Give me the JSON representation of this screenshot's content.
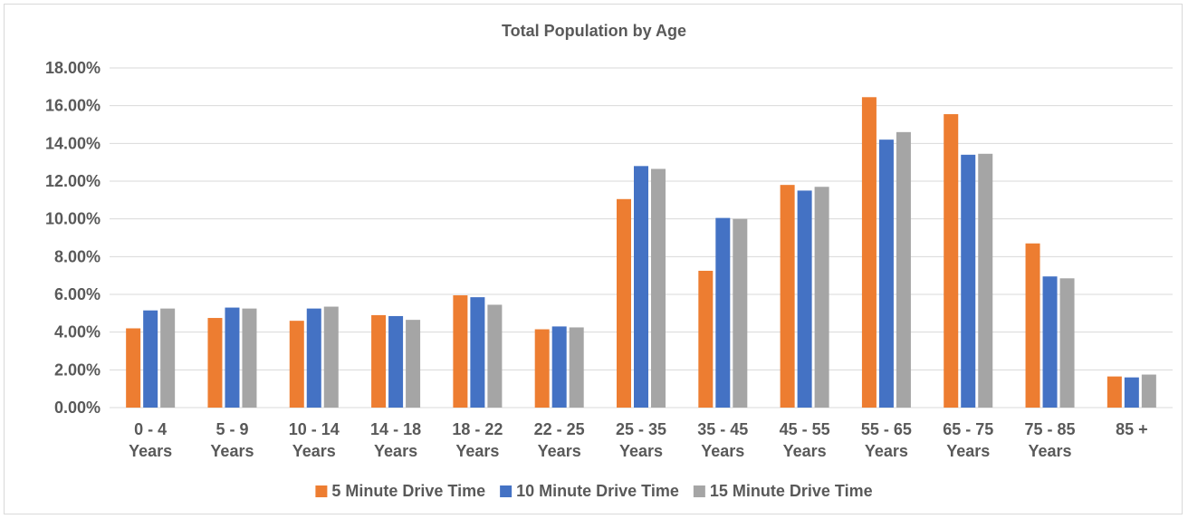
{
  "chart_data": {
    "type": "bar",
    "title": "Total Population by Age",
    "xlabel": "",
    "ylabel": "",
    "ylim": [
      0,
      18
    ],
    "yticks": [
      0,
      2,
      4,
      6,
      8,
      10,
      12,
      14,
      16,
      18
    ],
    "ytick_labels": [
      "0.00%",
      "2.00%",
      "4.00%",
      "6.00%",
      "8.00%",
      "10.00%",
      "12.00%",
      "14.00%",
      "16.00%",
      "18.00%"
    ],
    "grid": true,
    "legend_position": "bottom",
    "categories": [
      [
        "0 - 4",
        "Years"
      ],
      [
        "5 - 9",
        "Years"
      ],
      [
        "10 - 14",
        "Years"
      ],
      [
        "14 - 18",
        "Years"
      ],
      [
        "18 - 22",
        "Years"
      ],
      [
        "22 - 25",
        "Years"
      ],
      [
        "25 - 35",
        "Years"
      ],
      [
        "35 - 45",
        "Years"
      ],
      [
        "45 - 55",
        "Years"
      ],
      [
        "55 - 65",
        "Years"
      ],
      [
        "65 - 75",
        "Years"
      ],
      [
        "75 - 85",
        "Years"
      ],
      [
        "85 +"
      ]
    ],
    "series": [
      {
        "name": "5 Minute Drive Time",
        "color": "#ed7d31",
        "values": [
          4.2,
          4.75,
          4.6,
          4.9,
          5.95,
          4.15,
          11.05,
          7.25,
          11.8,
          16.45,
          15.55,
          8.7,
          1.65
        ]
      },
      {
        "name": "10 Minute Drive Time",
        "color": "#4472c4",
        "values": [
          5.15,
          5.3,
          5.25,
          4.85,
          5.85,
          4.3,
          12.8,
          10.05,
          11.5,
          14.2,
          13.4,
          6.95,
          1.6
        ]
      },
      {
        "name": "15 Minute Drive Time",
        "color": "#a5a5a5",
        "values": [
          5.25,
          5.25,
          5.35,
          4.65,
          5.45,
          4.25,
          12.65,
          10.0,
          11.7,
          14.6,
          13.45,
          6.85,
          1.75
        ]
      }
    ]
  }
}
